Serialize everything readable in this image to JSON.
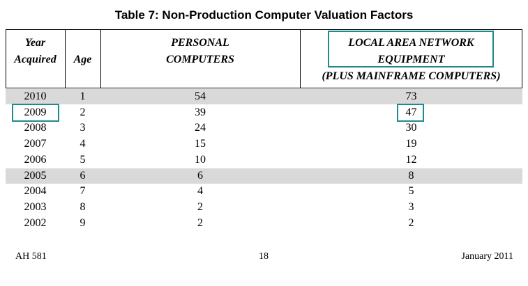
{
  "title": "Table 7: Non-Production Computer Valuation Factors",
  "headers": {
    "year_acquired": [
      "Year",
      "Acquired"
    ],
    "age": "Age",
    "personal": [
      "PERSONAL",
      "COMPUTERS"
    ],
    "lan": [
      "LOCAL AREA NETWORK",
      "EQUIPMENT",
      "(PLUS MAINFRAME COMPUTERS)"
    ]
  },
  "rows": [
    {
      "year": "2010",
      "age": "1",
      "pc": "54",
      "lan": "73",
      "shaded": true
    },
    {
      "year": "2009",
      "age": "2",
      "pc": "39",
      "lan": "47",
      "shaded": false
    },
    {
      "year": "2008",
      "age": "3",
      "pc": "24",
      "lan": "30",
      "shaded": false
    },
    {
      "year": "2007",
      "age": "4",
      "pc": "15",
      "lan": "19",
      "shaded": false
    },
    {
      "year": "2006",
      "age": "5",
      "pc": "10",
      "lan": "12",
      "shaded": false
    },
    {
      "year": "2005",
      "age": "6",
      "pc": "6",
      "lan": "8",
      "shaded": true
    },
    {
      "year": "2004",
      "age": "7",
      "pc": "4",
      "lan": "5",
      "shaded": false
    },
    {
      "year": "2003",
      "age": "8",
      "pc": "2",
      "lan": "3",
      "shaded": false
    },
    {
      "year": "2002",
      "age": "9",
      "pc": "2",
      "lan": "2",
      "shaded": false
    }
  ],
  "footer": {
    "left": "AH 581",
    "center": "18",
    "right": "January 2011"
  },
  "highlight_color": "#1f8a8a"
}
